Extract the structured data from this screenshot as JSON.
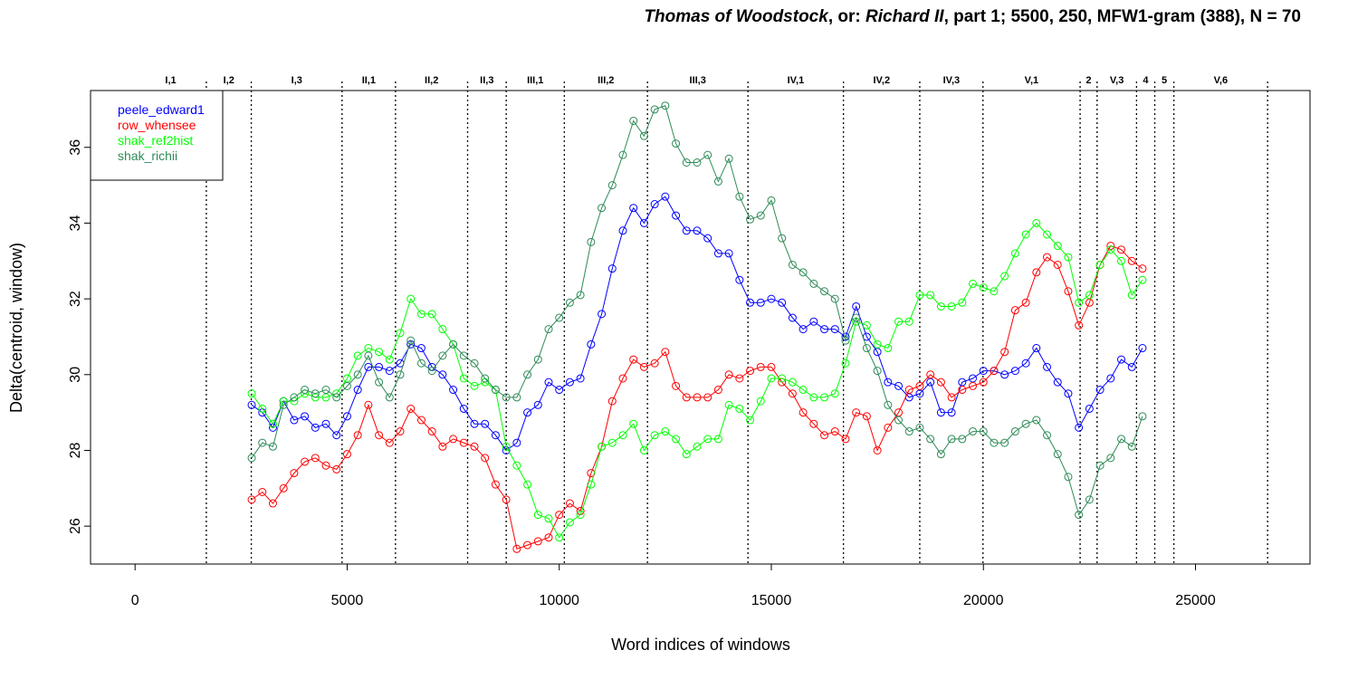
{
  "title": {
    "part1": "Thomas of Woodstock",
    "part2": ", or: ",
    "part3": "Richard II",
    "part4": ", part 1; 5500, 250, MFW1-gram (388), N = 70"
  },
  "chart_data": {
    "type": "line",
    "xlabel": "Word indices of windows",
    "ylabel": "Delta(centroid, window)",
    "xlim": [
      -1050,
      27700
    ],
    "ylim": [
      25,
      37.5
    ],
    "xticks": [
      0,
      5000,
      10000,
      15000,
      20000,
      25000
    ],
    "yticks": [
      26,
      28,
      30,
      32,
      34,
      36
    ],
    "legend_position": "top-left",
    "scene_boundaries": [
      1680,
      2740,
      4880,
      6140,
      7840,
      8750,
      10120,
      12080,
      14450,
      16700,
      18500,
      19990,
      22280,
      22680,
      23610,
      24040,
      24490,
      26700
    ],
    "scene_labels": [
      {
        "label": "I,1",
        "x": 840
      },
      {
        "label": "I,2",
        "x": 2210
      },
      {
        "label": "I,3",
        "x": 3810
      },
      {
        "label": "II,1",
        "x": 5510
      },
      {
        "label": "II,2",
        "x": 6990
      },
      {
        "label": "II,3",
        "x": 8295
      },
      {
        "label": "III,1",
        "x": 9435
      },
      {
        "label": "III,2",
        "x": 11100
      },
      {
        "label": "III,3",
        "x": 13265
      },
      {
        "label": "IV,1",
        "x": 15575
      },
      {
        "label": "IV,2",
        "x": 17600
      },
      {
        "label": "IV,3",
        "x": 19245
      },
      {
        "label": "V,1",
        "x": 21135
      },
      {
        "label": "2",
        "x": 22480
      },
      {
        "label": "V,3",
        "x": 23145
      },
      {
        "label": "4",
        "x": 23825
      },
      {
        "label": "5",
        "x": 24265
      },
      {
        "label": "V,6",
        "x": 25595
      }
    ],
    "x": [
      2750,
      3000,
      3250,
      3500,
      3750,
      4000,
      4250,
      4500,
      4750,
      5000,
      5250,
      5500,
      5750,
      6000,
      6250,
      6500,
      6750,
      7000,
      7250,
      7500,
      7750,
      8000,
      8250,
      8500,
      8750,
      9000,
      9250,
      9500,
      9750,
      10000,
      10250,
      10500,
      10750,
      11000,
      11250,
      11500,
      11750,
      12000,
      12250,
      12500,
      12750,
      13000,
      13250,
      13500,
      13750,
      14000,
      14250,
      14500,
      14750,
      15000,
      15250,
      15500,
      15750,
      16000,
      16250,
      16500,
      16750,
      17000,
      17250,
      17500,
      17750,
      18000,
      18250,
      18500,
      18750,
      19000,
      19250,
      19500,
      19750,
      20000,
      20250,
      20500,
      20750,
      21000,
      21250,
      21500,
      21750,
      22000,
      22250,
      22500,
      22750,
      23000,
      23250,
      23500,
      23750
    ],
    "series": [
      {
        "name": "peele_edward1",
        "color": "#0000ff",
        "values": [
          29.2,
          29.0,
          28.6,
          29.3,
          28.8,
          28.9,
          28.6,
          28.7,
          28.4,
          28.9,
          29.6,
          30.2,
          30.2,
          30.1,
          30.3,
          30.8,
          30.7,
          30.2,
          30.0,
          29.6,
          29.1,
          28.7,
          28.7,
          28.4,
          28.0,
          28.2,
          29.0,
          29.2,
          29.8,
          29.6,
          29.8,
          29.9,
          30.8,
          31.6,
          32.8,
          33.8,
          34.4,
          34.0,
          34.5,
          34.7,
          34.2,
          33.8,
          33.8,
          33.6,
          33.2,
          33.2,
          32.5,
          31.9,
          31.9,
          32.0,
          31.9,
          31.5,
          31.2,
          31.4,
          31.2,
          31.2,
          31.0,
          31.8,
          31.0,
          30.6,
          29.8,
          29.7,
          29.4,
          29.5,
          29.8,
          29.0,
          29.0,
          29.8,
          29.9,
          30.1,
          30.1,
          30.0,
          30.1,
          30.3,
          30.7,
          30.2,
          29.8,
          29.5,
          28.6,
          29.1,
          29.6,
          29.9,
          30.4,
          30.2,
          30.7
        ]
      },
      {
        "name": "row_whensee",
        "color": "#ff0000",
        "values": [
          26.7,
          26.9,
          26.6,
          27.0,
          27.4,
          27.7,
          27.8,
          27.6,
          27.5,
          27.9,
          28.4,
          29.2,
          28.4,
          28.2,
          28.5,
          29.1,
          28.8,
          28.5,
          28.1,
          28.3,
          28.2,
          28.1,
          27.8,
          27.1,
          26.7,
          25.4,
          25.5,
          25.6,
          25.7,
          26.3,
          26.6,
          26.4,
          27.4,
          28.1,
          29.3,
          29.9,
          30.4,
          30.2,
          30.3,
          30.6,
          29.7,
          29.4,
          29.4,
          29.4,
          29.6,
          30.0,
          29.9,
          30.1,
          30.2,
          30.2,
          29.8,
          29.5,
          29.0,
          28.7,
          28.4,
          28.5,
          28.3,
          29.0,
          28.9,
          28.0,
          28.6,
          29.0,
          29.6,
          29.7,
          30.0,
          29.8,
          29.4,
          29.6,
          29.7,
          29.8,
          30.1,
          30.6,
          31.7,
          31.9,
          32.7,
          33.1,
          32.9,
          32.2,
          31.3,
          31.9,
          32.9,
          33.4,
          33.3,
          33.0,
          32.8
        ]
      },
      {
        "name": "shak_ref2hist",
        "color": "#00ff00",
        "values": [
          29.5,
          29.1,
          28.7,
          29.3,
          29.3,
          29.5,
          29.4,
          29.4,
          29.5,
          29.9,
          30.5,
          30.7,
          30.6,
          30.4,
          31.1,
          32.0,
          31.6,
          31.6,
          31.2,
          30.8,
          29.9,
          29.7,
          29.8,
          29.6,
          28.1,
          27.6,
          27.1,
          26.3,
          26.2,
          25.7,
          26.1,
          26.3,
          27.1,
          28.1,
          28.2,
          28.4,
          28.7,
          28.0,
          28.4,
          28.5,
          28.3,
          27.9,
          28.1,
          28.3,
          28.3,
          29.2,
          29.1,
          28.8,
          29.3,
          29.9,
          29.9,
          29.8,
          29.6,
          29.4,
          29.4,
          29.5,
          30.3,
          31.4,
          31.3,
          30.8,
          30.7,
          31.4,
          31.4,
          32.1,
          32.1,
          31.8,
          31.8,
          31.9,
          32.4,
          32.3,
          32.2,
          32.6,
          33.2,
          33.7,
          34.0,
          33.7,
          33.4,
          33.1,
          31.9,
          32.1,
          32.9,
          33.3,
          33.0,
          32.1,
          32.5
        ]
      },
      {
        "name": "shak_richii",
        "color": "#2e8b57",
        "values": [
          27.8,
          28.2,
          28.1,
          29.2,
          29.4,
          29.6,
          29.5,
          29.6,
          29.4,
          29.7,
          30.0,
          30.5,
          29.8,
          29.4,
          30.0,
          30.9,
          30.3,
          30.1,
          30.5,
          30.8,
          30.5,
          30.3,
          29.9,
          29.6,
          29.4,
          29.4,
          30.0,
          30.4,
          31.2,
          31.5,
          31.9,
          32.1,
          33.5,
          34.4,
          35.0,
          35.8,
          36.7,
          36.3,
          37.0,
          37.1,
          36.1,
          35.6,
          35.6,
          35.8,
          35.1,
          35.7,
          34.7,
          34.1,
          34.2,
          34.6,
          33.6,
          32.9,
          32.7,
          32.4,
          32.2,
          32.0,
          30.9,
          31.5,
          30.7,
          30.1,
          29.2,
          28.8,
          28.5,
          28.6,
          28.3,
          27.9,
          28.3,
          28.3,
          28.5,
          28.5,
          28.2,
          28.2,
          28.5,
          28.7,
          28.8,
          28.4,
          27.9,
          27.3,
          26.3,
          26.7,
          27.6,
          27.8,
          28.3,
          28.1,
          28.9
        ]
      }
    ]
  }
}
